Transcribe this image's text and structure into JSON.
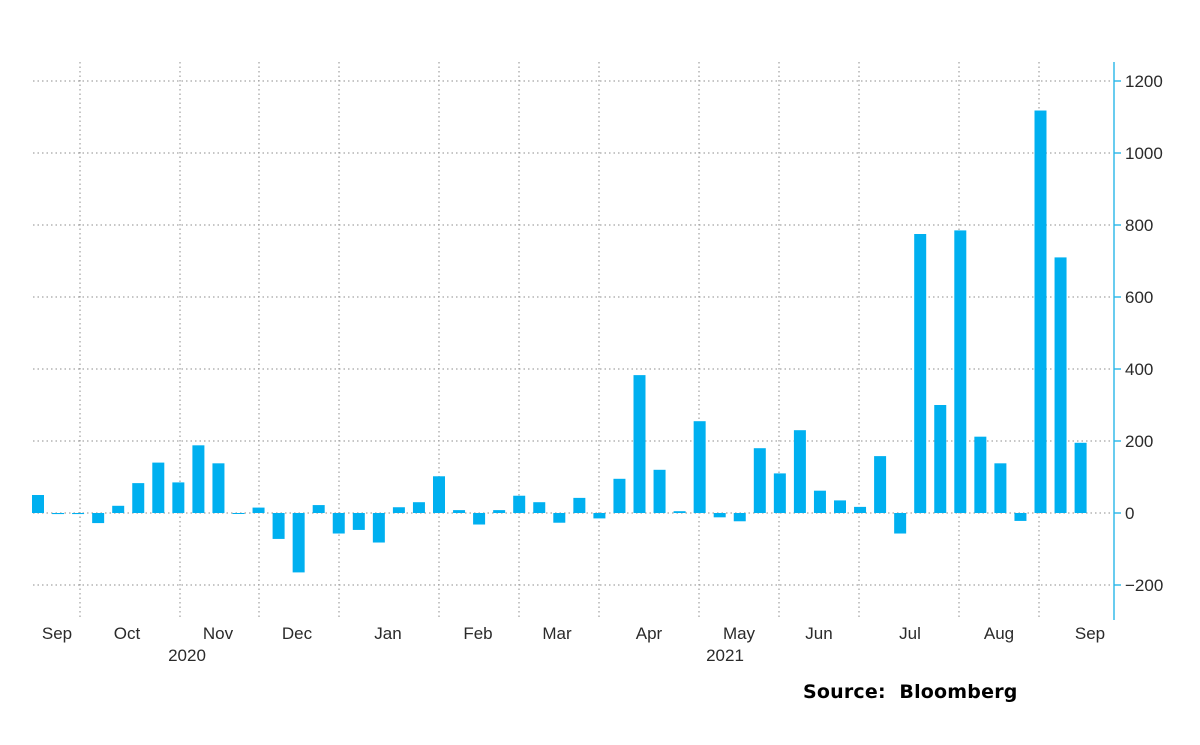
{
  "chart_data": {
    "type": "bar",
    "color": "#00b0f0",
    "ylim": [
      -290,
      1210
    ],
    "yticks": [
      -200,
      0,
      200,
      400,
      600,
      800,
      1000,
      1200
    ],
    "yaxis_side": "right",
    "grid": true,
    "month_labels": [
      "Sep",
      "Oct",
      "Nov",
      "Dec",
      "Jan",
      "Feb",
      "Mar",
      "Apr",
      "May",
      "Jun",
      "Jul",
      "Aug",
      "Sep"
    ],
    "year_labels": [
      "2020",
      "2021"
    ],
    "values": [
      50,
      -3,
      -3,
      -28,
      20,
      83,
      140,
      85,
      188,
      138,
      0,
      15,
      -72,
      -165,
      22,
      -57,
      -47,
      -82,
      16,
      30,
      102,
      8,
      -32,
      8,
      48,
      30,
      -27,
      42,
      -15,
      95,
      383,
      120,
      5,
      255,
      -12,
      -23,
      180,
      110,
      230,
      62,
      35,
      17,
      158,
      -57,
      775,
      300,
      785,
      212,
      138,
      -22,
      1118,
      710,
      195
    ]
  },
  "source": "Source:  Bloomberg"
}
